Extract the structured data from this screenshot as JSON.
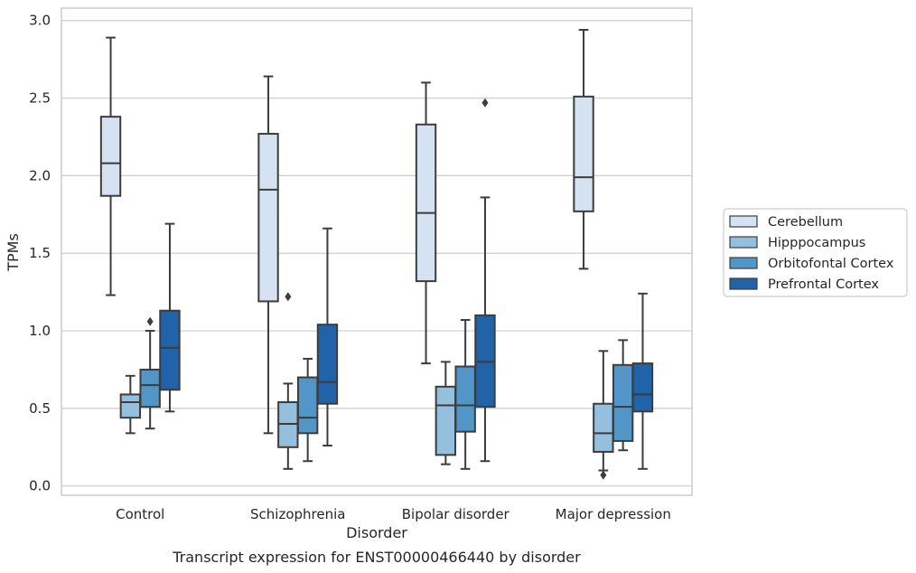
{
  "chart_data": {
    "type": "boxplot",
    "caption": "Transcript expression for ENST00000466440 by disorder",
    "xlabel": "Disorder",
    "ylabel": "TPMs",
    "ylim": [
      -0.06,
      3.08
    ],
    "yticks": [
      "0.0",
      "0.5",
      "1.0",
      "1.5",
      "2.0",
      "2.5",
      "3.0"
    ],
    "grid": true,
    "legend_position": "right",
    "categories": [
      "Control",
      "Schizophrenia",
      "Bipolar disorder",
      "Major depression"
    ],
    "series": [
      {
        "name": "Cerebellum",
        "color": "#d4e2f1",
        "boxes": [
          {
            "whislo": 1.23,
            "q1": 1.87,
            "med": 2.08,
            "q3": 2.38,
            "whishi": 2.89,
            "fliers": []
          },
          {
            "whislo": 0.34,
            "q1": 1.19,
            "med": 1.91,
            "q3": 2.27,
            "whishi": 2.64,
            "fliers": []
          },
          {
            "whislo": 0.79,
            "q1": 1.32,
            "med": 1.76,
            "q3": 2.33,
            "whishi": 2.6,
            "fliers": []
          },
          {
            "whislo": 1.4,
            "q1": 1.77,
            "med": 1.99,
            "q3": 2.51,
            "whishi": 2.94,
            "fliers": []
          }
        ]
      },
      {
        "name": "Hipppocampus",
        "color": "#94c0dd",
        "boxes": [
          {
            "whislo": 0.34,
            "q1": 0.44,
            "med": 0.54,
            "q3": 0.59,
            "whishi": 0.71,
            "fliers": []
          },
          {
            "whislo": 0.11,
            "q1": 0.25,
            "med": 0.4,
            "q3": 0.54,
            "whishi": 0.66,
            "fliers": [
              1.22
            ]
          },
          {
            "whislo": 0.14,
            "q1": 0.2,
            "med": 0.52,
            "q3": 0.64,
            "whishi": 0.8,
            "fliers": []
          },
          {
            "whislo": 0.1,
            "q1": 0.22,
            "med": 0.34,
            "q3": 0.53,
            "whishi": 0.87,
            "fliers": [
              0.07
            ]
          }
        ]
      },
      {
        "name": "Orbitofontal Cortex",
        "color": "#5296c7",
        "boxes": [
          {
            "whislo": 0.37,
            "q1": 0.51,
            "med": 0.65,
            "q3": 0.75,
            "whishi": 1.0,
            "fliers": [
              1.06
            ]
          },
          {
            "whislo": 0.16,
            "q1": 0.34,
            "med": 0.44,
            "q3": 0.7,
            "whishi": 0.82,
            "fliers": []
          },
          {
            "whislo": 0.11,
            "q1": 0.35,
            "med": 0.52,
            "q3": 0.77,
            "whishi": 1.07,
            "fliers": []
          },
          {
            "whislo": 0.23,
            "q1": 0.29,
            "med": 0.51,
            "q3": 0.78,
            "whishi": 0.94,
            "fliers": []
          }
        ]
      },
      {
        "name": "Prefrontal Cortex",
        "color": "#2063a8",
        "boxes": [
          {
            "whislo": 0.48,
            "q1": 0.62,
            "med": 0.89,
            "q3": 1.13,
            "whishi": 1.69,
            "fliers": []
          },
          {
            "whislo": 0.26,
            "q1": 0.53,
            "med": 0.67,
            "q3": 1.04,
            "whishi": 1.66,
            "fliers": []
          },
          {
            "whislo": 0.16,
            "q1": 0.51,
            "med": 0.8,
            "q3": 1.1,
            "whishi": 1.86,
            "fliers": [
              2.47
            ]
          },
          {
            "whislo": 0.11,
            "q1": 0.48,
            "med": 0.59,
            "q3": 0.79,
            "whishi": 1.24,
            "fliers": []
          }
        ]
      }
    ]
  }
}
